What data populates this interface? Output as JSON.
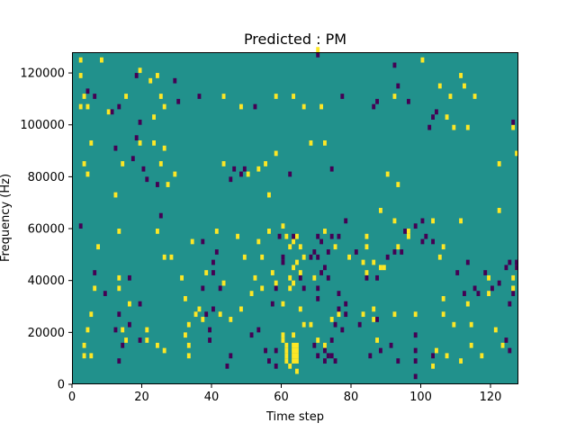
{
  "chart_data": {
    "type": "heatmap",
    "title": "Predicted : PM",
    "xlabel": "Time step",
    "ylabel": "Frequency (Hz)",
    "xlim": [
      0,
      128
    ],
    "ylim": [
      0,
      128000
    ],
    "x_ticks": [
      0,
      20,
      40,
      60,
      80,
      100,
      120
    ],
    "y_ticks": [
      0,
      20000,
      40000,
      60000,
      80000,
      100000,
      120000
    ],
    "x_tick_labels": [
      "0",
      "20",
      "40",
      "60",
      "80",
      "100",
      "120"
    ],
    "y_tick_labels": [
      "0",
      "20000",
      "40000",
      "60000",
      "80000",
      "100000",
      "120000"
    ],
    "bin_height_hz": 2000,
    "background_value": 0,
    "colors": {
      "low": "#440154",
      "mid": "#21918c",
      "high": "#fde725"
    },
    "cells": [
      [
        2,
        124000,
        1
      ],
      [
        2,
        118000,
        1
      ],
      [
        8,
        124000,
        1
      ],
      [
        19,
        120000,
        1
      ],
      [
        22,
        116000,
        1
      ],
      [
        24,
        118000,
        1
      ],
      [
        3,
        110000,
        1
      ],
      [
        2,
        106000,
        1
      ],
      [
        4,
        106000,
        1
      ],
      [
        15,
        110000,
        1
      ],
      [
        25,
        110000,
        1
      ],
      [
        43,
        110000,
        1
      ],
      [
        58,
        110000,
        1
      ],
      [
        63,
        110000,
        1
      ],
      [
        70,
        128000,
        1
      ],
      [
        111,
        118000,
        1
      ],
      [
        105,
        114000,
        1
      ],
      [
        112,
        114000,
        1
      ],
      [
        108,
        110000,
        1
      ],
      [
        115,
        110000,
        1
      ],
      [
        92,
        110000,
        1
      ],
      [
        100,
        124000,
        1
      ],
      [
        66,
        106000,
        1
      ],
      [
        71,
        106000,
        1
      ],
      [
        48,
        106000,
        1
      ],
      [
        26,
        106000,
        1
      ],
      [
        10,
        104000,
        1
      ],
      [
        23,
        102000,
        1
      ],
      [
        107,
        102000,
        1
      ],
      [
        109,
        98000,
        1
      ],
      [
        113,
        98000,
        1
      ],
      [
        126,
        98000,
        1
      ],
      [
        5,
        92000,
        1
      ],
      [
        19,
        92000,
        1
      ],
      [
        23,
        92000,
        1
      ],
      [
        26,
        90000,
        1
      ],
      [
        58,
        88000,
        1
      ],
      [
        68,
        92000,
        1
      ],
      [
        72,
        92000,
        1
      ],
      [
        127,
        88000,
        1
      ],
      [
        3,
        84000,
        1
      ],
      [
        4,
        80000,
        1
      ],
      [
        14,
        84000,
        1
      ],
      [
        25,
        84000,
        1
      ],
      [
        29,
        80000,
        1
      ],
      [
        43,
        84000,
        1
      ],
      [
        50,
        80000,
        1
      ],
      [
        53,
        82000,
        1
      ],
      [
        55,
        84000,
        1
      ],
      [
        90,
        80000,
        1
      ],
      [
        122,
        84000,
        1
      ],
      [
        12,
        72000,
        1
      ],
      [
        27,
        76000,
        1
      ],
      [
        56,
        72000,
        1
      ],
      [
        93,
        76000,
        1
      ],
      [
        88,
        66000,
        1
      ],
      [
        92,
        62000,
        1
      ],
      [
        103,
        62000,
        1
      ],
      [
        111,
        62000,
        1
      ],
      [
        122,
        66000,
        1
      ],
      [
        7,
        52000,
        1
      ],
      [
        13,
        58000,
        1
      ],
      [
        24,
        58000,
        1
      ],
      [
        34,
        54000,
        1
      ],
      [
        41,
        58000,
        1
      ],
      [
        47,
        56000,
        1
      ],
      [
        53,
        54000,
        1
      ],
      [
        54,
        48000,
        1
      ],
      [
        56,
        58000,
        1
      ],
      [
        60,
        60000,
        1
      ],
      [
        61,
        56000,
        1
      ],
      [
        62,
        52000,
        1
      ],
      [
        63,
        54000,
        1
      ],
      [
        64,
        56000,
        1
      ],
      [
        65,
        52000,
        1
      ],
      [
        66,
        48000,
        1
      ],
      [
        64,
        46000,
        1
      ],
      [
        63,
        44000,
        1
      ],
      [
        62,
        40000,
        1
      ],
      [
        63,
        38000,
        1
      ],
      [
        65,
        42000,
        1
      ],
      [
        62,
        36000,
        1
      ],
      [
        72,
        58000,
        1
      ],
      [
        75,
        52000,
        1
      ],
      [
        79,
        48000,
        1
      ],
      [
        84,
        56000,
        1
      ],
      [
        84,
        52000,
        1
      ],
      [
        86,
        46000,
        1
      ],
      [
        88,
        44000,
        1
      ],
      [
        89,
        44000,
        1
      ],
      [
        84,
        42000,
        1
      ],
      [
        93,
        52000,
        1
      ],
      [
        96,
        56000,
        1
      ],
      [
        96,
        58000,
        1
      ],
      [
        105,
        48000,
        1
      ],
      [
        106,
        52000,
        1
      ],
      [
        119,
        40000,
        1
      ],
      [
        126,
        40000,
        1
      ],
      [
        127,
        44000,
        1
      ],
      [
        126,
        36000,
        1
      ],
      [
        6,
        36000,
        1
      ],
      [
        13,
        40000,
        1
      ],
      [
        26,
        48000,
        1
      ],
      [
        28,
        48000,
        1
      ],
      [
        38,
        42000,
        1
      ],
      [
        31,
        40000,
        1
      ],
      [
        43,
        38000,
        1
      ],
      [
        49,
        48000,
        1
      ],
      [
        52,
        40000,
        1
      ],
      [
        54,
        36000,
        1
      ],
      [
        57,
        42000,
        1
      ],
      [
        58,
        38000,
        1
      ],
      [
        69,
        40000,
        1
      ],
      [
        83,
        46000,
        1
      ],
      [
        5,
        26000,
        1
      ],
      [
        4,
        20000,
        1
      ],
      [
        3,
        14000,
        1
      ],
      [
        3,
        10000,
        1
      ],
      [
        5,
        10000,
        1
      ],
      [
        13,
        36000,
        1
      ],
      [
        16,
        30000,
        1
      ],
      [
        14,
        20000,
        1
      ],
      [
        15,
        16000,
        1
      ],
      [
        21,
        16000,
        1
      ],
      [
        21,
        20000,
        1
      ],
      [
        24,
        14000,
        1
      ],
      [
        26,
        12000,
        1
      ],
      [
        32,
        32000,
        1
      ],
      [
        35,
        26000,
        1
      ],
      [
        33,
        22000,
        1
      ],
      [
        32,
        18000,
        1
      ],
      [
        33,
        14000,
        1
      ],
      [
        33,
        10000,
        1
      ],
      [
        36,
        28000,
        1
      ],
      [
        37,
        24000,
        1
      ],
      [
        42,
        26000,
        1
      ],
      [
        45,
        24000,
        1
      ],
      [
        48,
        28000,
        1
      ],
      [
        51,
        34000,
        1
      ],
      [
        60,
        30000,
        1
      ],
      [
        60,
        18000,
        1
      ],
      [
        60,
        16000,
        1
      ],
      [
        61,
        14000,
        1
      ],
      [
        61,
        12000,
        1
      ],
      [
        61,
        10000,
        1
      ],
      [
        61,
        8000,
        1
      ],
      [
        62,
        6000,
        1
      ],
      [
        63,
        18000,
        1
      ],
      [
        63,
        14000,
        1
      ],
      [
        63,
        12000,
        1
      ],
      [
        63,
        10000,
        1
      ],
      [
        63,
        8000,
        1
      ],
      [
        64,
        4000,
        1
      ],
      [
        64,
        14000,
        1
      ],
      [
        64,
        12000,
        1
      ],
      [
        64,
        10000,
        1
      ],
      [
        64,
        8000,
        1
      ],
      [
        65,
        28000,
        1
      ],
      [
        66,
        22000,
        1
      ],
      [
        68,
        22000,
        1
      ],
      [
        72,
        14000,
        1
      ],
      [
        70,
        16000,
        1
      ],
      [
        74,
        24000,
        1
      ],
      [
        76,
        26000,
        1
      ],
      [
        83,
        26000,
        1
      ],
      [
        86,
        24000,
        1
      ],
      [
        86,
        28000,
        1
      ],
      [
        87,
        16000,
        1
      ],
      [
        92,
        26000,
        1
      ],
      [
        98,
        26000,
        1
      ],
      [
        106,
        32000,
        1
      ],
      [
        106,
        26000,
        1
      ],
      [
        109,
        22000,
        1
      ],
      [
        113,
        30000,
        1
      ],
      [
        114,
        22000,
        1
      ],
      [
        119,
        34000,
        1
      ],
      [
        121,
        20000,
        1
      ],
      [
        123,
        14000,
        1
      ],
      [
        126,
        36000,
        1
      ],
      [
        107,
        10000,
        1
      ],
      [
        114,
        14000,
        1
      ],
      [
        117,
        10000,
        1
      ],
      [
        104,
        12000,
        1
      ],
      [
        103,
        6000,
        1
      ],
      [
        111,
        8000,
        1
      ],
      [
        70,
        126000,
        -1
      ],
      [
        92,
        122000,
        -1
      ],
      [
        18,
        118000,
        -1
      ],
      [
        29,
        116000,
        -1
      ],
      [
        4,
        112000,
        -1
      ],
      [
        6,
        110000,
        -1
      ],
      [
        13,
        106000,
        -1
      ],
      [
        11,
        104000,
        -1
      ],
      [
        36,
        110000,
        -1
      ],
      [
        30,
        108000,
        -1
      ],
      [
        52,
        106000,
        -1
      ],
      [
        77,
        110000,
        -1
      ],
      [
        86,
        106000,
        -1
      ],
      [
        87,
        108000,
        -1
      ],
      [
        93,
        114000,
        -1
      ],
      [
        96,
        108000,
        -1
      ],
      [
        104,
        104000,
        -1
      ],
      [
        126,
        100000,
        -1
      ],
      [
        103,
        102000,
        -1
      ],
      [
        102,
        98000,
        -1
      ],
      [
        19,
        100000,
        -1
      ],
      [
        18,
        94000,
        -1
      ],
      [
        12,
        90000,
        -1
      ],
      [
        17,
        86000,
        -1
      ],
      [
        20,
        82000,
        -1
      ],
      [
        21,
        78000,
        -1
      ],
      [
        24,
        76000,
        -1
      ],
      [
        25,
        64000,
        -1
      ],
      [
        45,
        78000,
        -1
      ],
      [
        46,
        82000,
        -1
      ],
      [
        49,
        82000,
        -1
      ],
      [
        48,
        80000,
        -1
      ],
      [
        62,
        80000,
        -1
      ],
      [
        74,
        82000,
        -1
      ],
      [
        78,
        62000,
        -1
      ],
      [
        76,
        56000,
        -1
      ],
      [
        81,
        50000,
        -1
      ],
      [
        90,
        48000,
        -1
      ],
      [
        92,
        50000,
        -1
      ],
      [
        94,
        50000,
        -1
      ],
      [
        98,
        60000,
        -1
      ],
      [
        100,
        62000,
        -1
      ],
      [
        100,
        54000,
        -1
      ],
      [
        103,
        54000,
        -1
      ],
      [
        101,
        56000,
        -1
      ],
      [
        95,
        58000,
        -1
      ],
      [
        2,
        60000,
        -1
      ],
      [
        6,
        42000,
        -1
      ],
      [
        9,
        34000,
        -1
      ],
      [
        16,
        40000,
        -1
      ],
      [
        19,
        30000,
        -1
      ],
      [
        13,
        26000,
        -1
      ],
      [
        12,
        20000,
        -1
      ],
      [
        16,
        22000,
        -1
      ],
      [
        14,
        14000,
        -1
      ],
      [
        13,
        8000,
        -1
      ],
      [
        19,
        16000,
        -1
      ],
      [
        37,
        54000,
        -1
      ],
      [
        40,
        46000,
        -1
      ],
      [
        41,
        50000,
        -1
      ],
      [
        40,
        42000,
        -1
      ],
      [
        37,
        36000,
        -1
      ],
      [
        42,
        36000,
        -1
      ],
      [
        40,
        28000,
        -1
      ],
      [
        38,
        26000,
        -1
      ],
      [
        39,
        20000,
        -1
      ],
      [
        39,
        16000,
        -1
      ],
      [
        44,
        6000,
        -1
      ],
      [
        45,
        10000,
        -1
      ],
      [
        57,
        30000,
        -1
      ],
      [
        51,
        18000,
        -1
      ],
      [
        53,
        20000,
        -1
      ],
      [
        55,
        12000,
        -1
      ],
      [
        58,
        12000,
        -1
      ],
      [
        56,
        8000,
        -1
      ],
      [
        58,
        6000,
        -1
      ],
      [
        60,
        48000,
        -1
      ],
      [
        63,
        56000,
        -1
      ],
      [
        59,
        56000,
        -1
      ],
      [
        60,
        46000,
        -1
      ],
      [
        58,
        36000,
        -1
      ],
      [
        65,
        40000,
        -1
      ],
      [
        66,
        36000,
        -1
      ],
      [
        68,
        48000,
        -1
      ],
      [
        69,
        50000,
        -1
      ],
      [
        70,
        48000,
        -1
      ],
      [
        71,
        42000,
        -1
      ],
      [
        70,
        36000,
        -1
      ],
      [
        70,
        32000,
        -1
      ],
      [
        73,
        40000,
        -1
      ],
      [
        72,
        44000,
        -1
      ],
      [
        74,
        56000,
        -1
      ],
      [
        70,
        56000,
        -1
      ],
      [
        71,
        54000,
        -1
      ],
      [
        73,
        50000,
        -1
      ],
      [
        76,
        34000,
        -1
      ],
      [
        78,
        30000,
        -1
      ],
      [
        78,
        26000,
        -1
      ],
      [
        77,
        20000,
        -1
      ],
      [
        75,
        22000,
        -1
      ],
      [
        74,
        16000,
        -1
      ],
      [
        72,
        12000,
        -1
      ],
      [
        73,
        10000,
        -1
      ],
      [
        74,
        10000,
        -1
      ],
      [
        75,
        8000,
        -1
      ],
      [
        69,
        14000,
        -1
      ],
      [
        70,
        10000,
        -1
      ],
      [
        72,
        8000,
        -1
      ],
      [
        76,
        28000,
        -1
      ],
      [
        82,
        22000,
        -1
      ],
      [
        85,
        10000,
        -1
      ],
      [
        88,
        12000,
        -1
      ],
      [
        87,
        40000,
        -1
      ],
      [
        84,
        40000,
        -1
      ],
      [
        87,
        24000,
        -1
      ],
      [
        91,
        14000,
        -1
      ],
      [
        93,
        8000,
        -1
      ],
      [
        98,
        18000,
        -1
      ],
      [
        98,
        12000,
        -1
      ],
      [
        98,
        2000,
        -1
      ],
      [
        98,
        8000,
        -1
      ],
      [
        103,
        10000,
        -1
      ],
      [
        110,
        42000,
        -1
      ],
      [
        113,
        46000,
        -1
      ],
      [
        112,
        34000,
        -1
      ],
      [
        115,
        36000,
        -1
      ],
      [
        116,
        34000,
        -1
      ],
      [
        125,
        46000,
        -1
      ],
      [
        127,
        46000,
        -1
      ],
      [
        124,
        44000,
        -1
      ],
      [
        126,
        34000,
        -1
      ],
      [
        125,
        30000,
        -1
      ],
      [
        125,
        12000,
        -1
      ],
      [
        124,
        16000,
        -1
      ],
      [
        127,
        44000,
        -1
      ],
      [
        122,
        38000,
        -1
      ],
      [
        120,
        36000,
        -1
      ],
      [
        118,
        42000,
        -1
      ]
    ]
  }
}
